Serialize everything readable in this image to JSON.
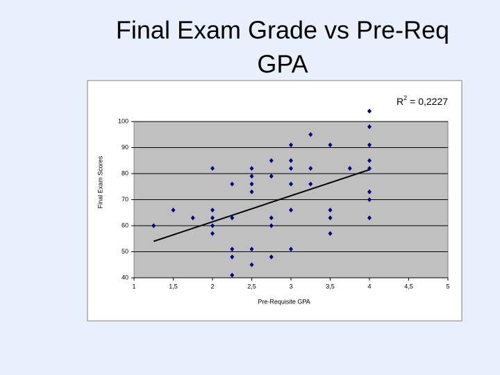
{
  "chart_data": {
    "type": "scatter",
    "title": [
      "Final Exam Grade vs Pre-Req",
      "GPA"
    ],
    "x_label": "Pre-Requisite GPA",
    "y_label": "Final Exam Scores",
    "annotation": [
      "R",
      "2",
      "= 0,2227"
    ],
    "xlim": [
      1,
      5
    ],
    "xticks": [
      1,
      {
        "value": 1.5,
        "label": "1,5"
      },
      2,
      {
        "value": 2.5,
        "label": "2,5"
      },
      3,
      {
        "value": 3.5,
        "label": "3,5"
      },
      4,
      {
        "value": 4.5,
        "label": "4,5"
      },
      5
    ],
    "ylim": [
      40,
      100
    ],
    "yticks": [
      40,
      50,
      60,
      70,
      80,
      90,
      100
    ],
    "grid": true,
    "plot_background": "#c0c0c0",
    "series": [
      {
        "color": "#000080",
        "x": [
          4,
          4,
          3.25,
          3,
          3.5,
          4,
          2.75,
          3,
          4,
          2,
          2.5,
          3,
          3.25,
          3.75,
          4,
          2.5,
          2.75,
          2.25,
          2.5,
          3,
          3.25,
          2.5,
          4,
          4,
          1.5,
          2,
          3,
          3.5,
          1.75,
          2,
          2.25,
          2.75,
          3.5,
          4,
          1.25,
          2,
          2.75,
          2,
          3.5,
          2.25,
          2.5,
          3,
          2.25,
          2.75,
          2.5,
          2.25
        ],
        "values": [
          104,
          98,
          95,
          91,
          91,
          91,
          85,
          85,
          85,
          82,
          82,
          82,
          82,
          82,
          82,
          79,
          79,
          76,
          76,
          76,
          76,
          73,
          73,
          70,
          66,
          66,
          66,
          66,
          63,
          63,
          63,
          63,
          63,
          63,
          60,
          60,
          60,
          57,
          57,
          51,
          51,
          51,
          48,
          48,
          45,
          41
        ]
      }
    ],
    "trendline": {
      "color": "#000000",
      "x": [
        1.25,
        4
      ],
      "values": [
        54,
        81.5
      ]
    }
  }
}
